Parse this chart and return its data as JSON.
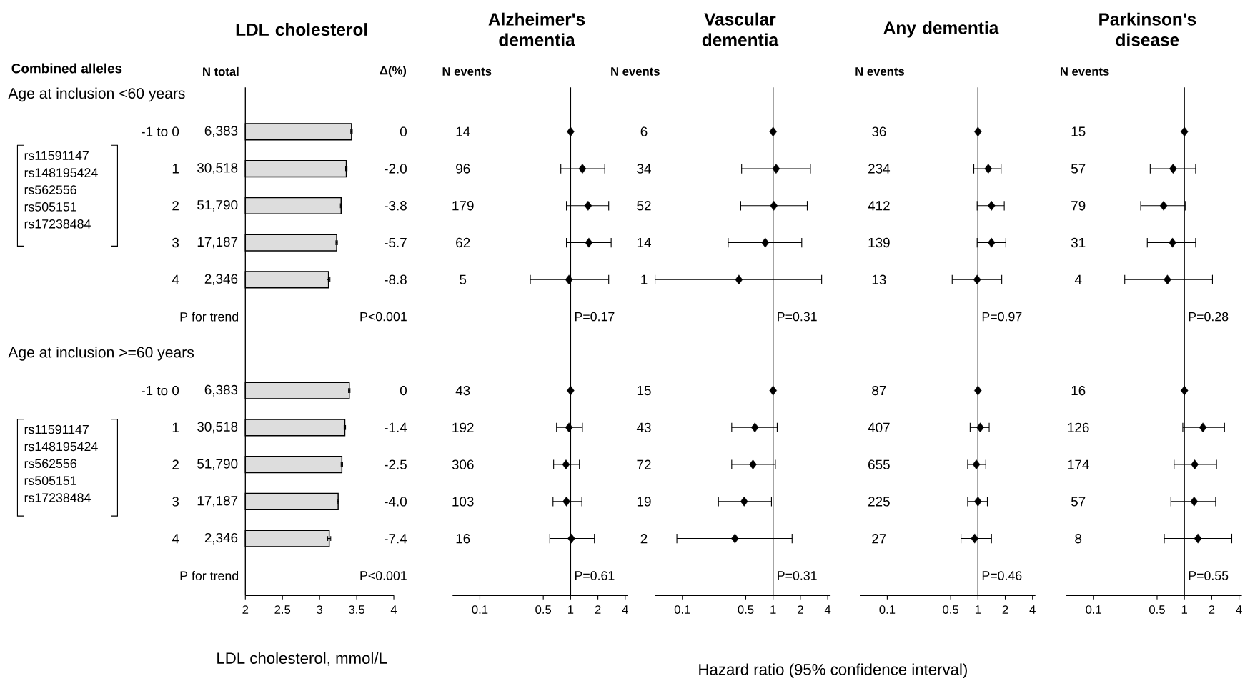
{
  "chart_data": [
    {
      "type": "bar",
      "orientation": "horizontal",
      "title": "LDL cholesterol",
      "xlabel": "LDL cholesterol, mmol/L",
      "categories": [
        null,
        "-1 to 0",
        "1",
        "2",
        "3",
        "4",
        "P for trend",
        null,
        "-1 to 0",
        "1",
        "2",
        "3",
        "4",
        "P for trend"
      ],
      "values": [
        null,
        3.43,
        3.36,
        3.29,
        3.23,
        3.12,
        null,
        null,
        3.4,
        3.34,
        3.3,
        3.25,
        3.13,
        null
      ],
      "errors": [
        null,
        0.01,
        0.01,
        0.01,
        0.01,
        0.02,
        null,
        null,
        0.01,
        0.01,
        0.01,
        0.01,
        0.02,
        null
      ],
      "color": "#dddddd",
      "xlim": [
        2,
        4
      ],
      "xticks": [
        2,
        2.5,
        3,
        3.5,
        4
      ],
      "annotations": [
        "Combined alleles",
        "N total",
        "Δ(%)",
        "Age at inclusion <60 years",
        "Age at inclusion >=60 years",
        "6,383",
        "30,518",
        "51,790",
        "17,187",
        "2,346",
        "6,383",
        "30,518",
        "51,790",
        "17,187",
        "2,346",
        "0",
        "-2.0",
        "-3.8",
        "-5.7",
        "-8.8",
        "0",
        "-1.4",
        "-2.5",
        "-4.0",
        "-7.4",
        "P<0.001",
        "P<0.001",
        "rs11591147",
        "rs148195424",
        "rs562556",
        "rs505151",
        "rs17238484",
        "rs11591147",
        "rs148195424",
        "rs562556",
        "rs505151",
        "rs17238484"
      ]
    },
    {
      "type": "scatter",
      "orientation": "horizontal",
      "title": "Alzheimer's dementia",
      "categories": [
        null,
        null,
        null,
        null,
        null,
        null,
        null,
        null,
        null,
        null,
        null,
        null,
        null,
        null
      ],
      "values": [
        null,
        1,
        1.35,
        1.56,
        1.59,
        0.96,
        null,
        null,
        1,
        0.96,
        0.89,
        0.9,
        1.02,
        null
      ],
      "errors": [
        null,
        null,
        [
          0.78,
          2.38
        ],
        [
          0.9,
          2.63
        ],
        [
          0.9,
          2.8
        ],
        [
          0.36,
          2.63
        ],
        null,
        null,
        null,
        [
          0.7,
          1.35
        ],
        [
          0.65,
          1.25
        ],
        [
          0.64,
          1.33
        ],
        [
          0.59,
          1.83
        ],
        null
      ],
      "color": "#000000",
      "marker": "diamond",
      "log": "x",
      "xlim": [
        0.05,
        4.3
      ],
      "xticks": [
        0.1,
        0.5,
        1,
        2,
        4
      ],
      "ref_lines": [
        {
          "axis": "x",
          "value": 1
        }
      ],
      "annotations": [
        "N events",
        "14",
        "96",
        "179",
        "62",
        "5",
        "43",
        "192",
        "306",
        "103",
        "16",
        "P=0.17",
        "P=0.61"
      ]
    },
    {
      "type": "scatter",
      "orientation": "horizontal",
      "title": "Vascular dementia",
      "xlabel": "Hazard ratio (95% confidence interval)",
      "categories": [
        null,
        null,
        null,
        null,
        null,
        null,
        null,
        null,
        null,
        null,
        null,
        null,
        null,
        null
      ],
      "values": [
        null,
        1,
        1.08,
        1.02,
        0.82,
        0.42,
        null,
        null,
        1,
        0.63,
        0.6,
        0.48,
        0.38,
        null
      ],
      "errors": [
        null,
        null,
        [
          0.45,
          2.58
        ],
        [
          0.44,
          2.38
        ],
        [
          0.32,
          2.07
        ],
        [
          0.05,
          3.43
        ],
        null,
        null,
        null,
        [
          0.35,
          1.11
        ],
        [
          0.35,
          1.06
        ],
        [
          0.25,
          0.96
        ],
        [
          0.087,
          1.62
        ],
        null
      ],
      "color": "#000000",
      "marker": "diamond",
      "log": "x",
      "xlim": [
        0.05,
        4.3
      ],
      "xticks": [
        0.1,
        0.5,
        1,
        2,
        4
      ],
      "ref_lines": [
        {
          "axis": "x",
          "value": 1
        }
      ],
      "annotations": [
        "N events",
        "6",
        "34",
        "52",
        "14",
        "1",
        "15",
        "43",
        "72",
        "19",
        "2",
        "P=0.31",
        "P=0.31"
      ]
    },
    {
      "type": "scatter",
      "orientation": "horizontal",
      "title": "Any dementia",
      "categories": [
        null,
        null,
        null,
        null,
        null,
        null,
        null,
        null,
        null,
        null,
        null,
        null,
        null,
        null
      ],
      "values": [
        null,
        1,
        1.3,
        1.41,
        1.41,
        0.98,
        null,
        null,
        1,
        1.06,
        0.96,
        1.0,
        0.92,
        null
      ],
      "errors": [
        null,
        null,
        [
          0.9,
          1.8
        ],
        [
          0.98,
          1.95
        ],
        [
          0.98,
          2.03
        ],
        [
          0.52,
          1.83
        ],
        null,
        null,
        null,
        [
          0.82,
          1.33
        ],
        [
          0.77,
          1.22
        ],
        [
          0.77,
          1.27
        ],
        [
          0.65,
          1.41
        ],
        null
      ],
      "color": "#000000",
      "marker": "diamond",
      "log": "x",
      "xlim": [
        0.05,
        4.3
      ],
      "xticks": [
        0.1,
        0.5,
        1,
        2,
        4
      ],
      "ref_lines": [
        {
          "axis": "x",
          "value": 1
        }
      ],
      "annotations": [
        "N events",
        "36",
        "234",
        "412",
        "139",
        "13",
        "87",
        "407",
        "655",
        "225",
        "27",
        "P=0.97",
        "P=0.46"
      ]
    },
    {
      "type": "scatter",
      "orientation": "horizontal",
      "title": "Parkinson's disease",
      "categories": [
        null,
        null,
        null,
        null,
        null,
        null,
        null,
        null,
        null,
        null,
        null,
        null,
        null,
        null
      ],
      "values": [
        null,
        1,
        0.75,
        0.59,
        0.74,
        0.65,
        null,
        null,
        1,
        1.6,
        1.3,
        1.28,
        1.41,
        null
      ],
      "errors": [
        null,
        null,
        [
          0.42,
          1.33
        ],
        [
          0.33,
          1.02
        ],
        [
          0.39,
          1.33
        ],
        [
          0.22,
          2.04
        ],
        null,
        null,
        null,
        [
          0.96,
          2.77
        ],
        [
          0.77,
          2.26
        ],
        [
          0.71,
          2.21
        ],
        [
          0.6,
          3.33
        ],
        null
      ],
      "color": "#000000",
      "marker": "diamond",
      "log": "x",
      "xlim": [
        0.05,
        4.3
      ],
      "xticks": [
        0.1,
        0.5,
        1,
        2,
        4
      ],
      "ref_lines": [
        {
          "axis": "x",
          "value": 1
        }
      ],
      "annotations": [
        "N events",
        "15",
        "57",
        "79",
        "31",
        "4",
        "16",
        "126",
        "174",
        "57",
        "8",
        "P=0.28",
        "P=0.55"
      ]
    }
  ]
}
